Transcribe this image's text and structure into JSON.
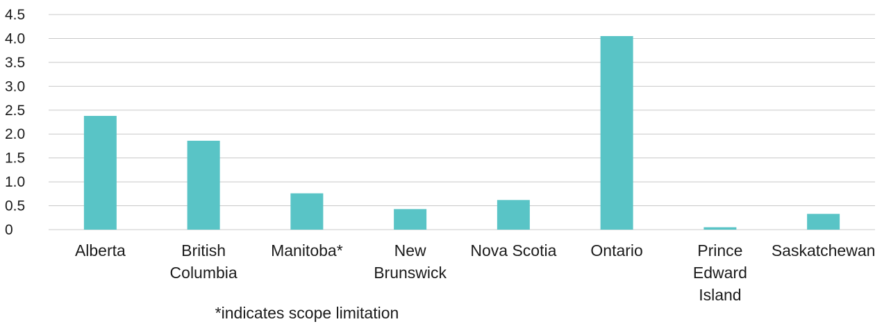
{
  "chart_data": {
    "type": "bar",
    "categories": [
      [
        "Alberta"
      ],
      [
        "British",
        "Columbia"
      ],
      [
        "Manitoba*"
      ],
      [
        "New",
        "Brunswick"
      ],
      [
        "Nova Scotia"
      ],
      [
        "Ontario"
      ],
      [
        "Prince",
        "Edward",
        "Island"
      ],
      [
        "Saskatchewan"
      ]
    ],
    "values": [
      2.38,
      1.86,
      0.76,
      0.43,
      0.62,
      4.05,
      0.05,
      0.33
    ],
    "ylim": [
      0,
      4.5
    ],
    "yticks": [
      "0",
      "0.5",
      "1.0",
      "1.5",
      "2.0",
      "2.5",
      "3.0",
      "3.5",
      "4.0",
      "4.5"
    ],
    "grid": true,
    "bar_color": "#59c4c6",
    "grid_color": "#c8c8c8"
  },
  "footnote": "*indicates scope limitation"
}
